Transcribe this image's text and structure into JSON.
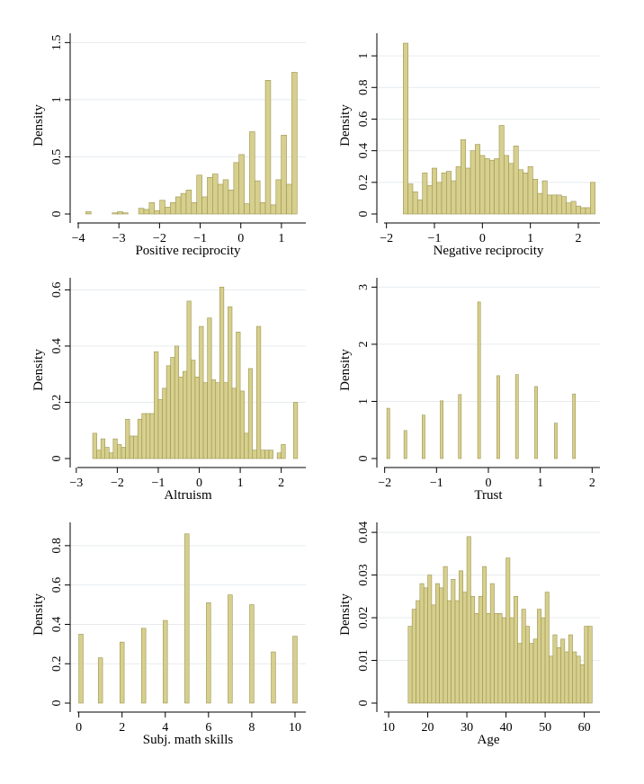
{
  "chart_data": [
    {
      "id": "positive-reciprocity",
      "type": "bar",
      "xlabel": "Positive reciprocity",
      "ylabel": "Density",
      "xlim": [
        -4.2,
        1.6
      ],
      "ylim": [
        0,
        1.55
      ],
      "xticks": [
        -4,
        -3,
        -2,
        -1,
        0,
        1
      ],
      "xtick_labels": [
        "−4",
        "−3",
        "−2",
        "−1",
        "0",
        "1"
      ],
      "yticks": [
        0,
        0.5,
        1,
        1.5
      ],
      "ytick_labels": [
        "0",
        "0.5",
        "1",
        "1.5"
      ],
      "bin_width": 0.13,
      "bins": [
        [
          -3.75,
          0.02
        ],
        [
          -3.1,
          0.01
        ],
        [
          -2.97,
          0.02
        ],
        [
          -2.84,
          0.01
        ],
        [
          -2.45,
          0.05
        ],
        [
          -2.32,
          0.04
        ],
        [
          -2.19,
          0.1
        ],
        [
          -2.06,
          0.03
        ],
        [
          -1.93,
          0.12
        ],
        [
          -1.8,
          0.06
        ],
        [
          -1.67,
          0.1
        ],
        [
          -1.54,
          0.15
        ],
        [
          -1.41,
          0.18
        ],
        [
          -1.28,
          0.21
        ],
        [
          -1.15,
          0.1
        ],
        [
          -1.02,
          0.34
        ],
        [
          -0.89,
          0.15
        ],
        [
          -0.76,
          0.32
        ],
        [
          -0.63,
          0.35
        ],
        [
          -0.5,
          0.26
        ],
        [
          -0.37,
          0.3
        ],
        [
          -0.24,
          0.21
        ],
        [
          -0.11,
          0.45
        ],
        [
          0.02,
          0.52
        ],
        [
          0.15,
          0.09
        ],
        [
          0.28,
          0.72
        ],
        [
          0.41,
          0.29
        ],
        [
          0.54,
          0.1
        ],
        [
          0.67,
          1.17
        ],
        [
          0.8,
          0.08
        ],
        [
          0.93,
          0.3
        ],
        [
          1.06,
          0.69
        ],
        [
          1.19,
          0.26
        ],
        [
          1.32,
          1.24
        ]
      ]
    },
    {
      "id": "negative-reciprocity",
      "type": "bar",
      "xlabel": "Negative reciprocity",
      "ylabel": "Density",
      "xlim": [
        -2.2,
        2.45
      ],
      "ylim": [
        0,
        1.12
      ],
      "xticks": [
        -2,
        -1,
        0,
        1,
        2
      ],
      "xtick_labels": [
        "−2",
        "−1",
        "0",
        "1",
        "2"
      ],
      "yticks": [
        0,
        0.2,
        0.4,
        0.6,
        0.8,
        1
      ],
      "ytick_labels": [
        "0",
        "0.2",
        "0.4",
        "0.6",
        "0.8",
        "1"
      ],
      "bin_width": 0.1,
      "bins": [
        [
          -1.6,
          1.08
        ],
        [
          -1.5,
          0.19
        ],
        [
          -1.4,
          0.14
        ],
        [
          -1.3,
          0.09
        ],
        [
          -1.2,
          0.26
        ],
        [
          -1.1,
          0.18
        ],
        [
          -1.0,
          0.29
        ],
        [
          -0.9,
          0.2
        ],
        [
          -0.8,
          0.26
        ],
        [
          -0.7,
          0.27
        ],
        [
          -0.6,
          0.21
        ],
        [
          -0.5,
          0.3
        ],
        [
          -0.4,
          0.47
        ],
        [
          -0.3,
          0.29
        ],
        [
          -0.2,
          0.4
        ],
        [
          -0.1,
          0.44
        ],
        [
          0.0,
          0.37
        ],
        [
          0.1,
          0.35
        ],
        [
          0.2,
          0.34
        ],
        [
          0.3,
          0.35
        ],
        [
          0.4,
          0.56
        ],
        [
          0.5,
          0.37
        ],
        [
          0.6,
          0.32
        ],
        [
          0.7,
          0.43
        ],
        [
          0.8,
          0.28
        ],
        [
          0.9,
          0.26
        ],
        [
          1.0,
          0.3
        ],
        [
          1.1,
          0.22
        ],
        [
          1.2,
          0.13
        ],
        [
          1.3,
          0.21
        ],
        [
          1.4,
          0.12
        ],
        [
          1.5,
          0.12
        ],
        [
          1.6,
          0.12
        ],
        [
          1.7,
          0.11
        ],
        [
          1.8,
          0.07
        ],
        [
          1.9,
          0.08
        ],
        [
          2.0,
          0.05
        ],
        [
          2.1,
          0.04
        ],
        [
          2.2,
          0.04
        ],
        [
          2.3,
          0.2
        ]
      ]
    },
    {
      "id": "altruism",
      "type": "bar",
      "xlabel": "Altruism",
      "ylabel": "Density",
      "xlim": [
        -3.15,
        2.6
      ],
      "ylim": [
        0,
        0.63
      ],
      "xticks": [
        -3,
        -2,
        -1,
        0,
        1,
        2
      ],
      "xtick_labels": [
        "−3",
        "−2",
        "−1",
        "0",
        "1",
        "2"
      ],
      "yticks": [
        0,
        0.2,
        0.4,
        0.6
      ],
      "ytick_labels": [
        "0",
        "0.2",
        "0.4",
        "0.6"
      ],
      "bin_width": 0.1,
      "bins": [
        [
          -2.55,
          0.09
        ],
        [
          -2.45,
          0.03
        ],
        [
          -2.35,
          0.07
        ],
        [
          -2.25,
          0.04
        ],
        [
          -2.15,
          0.02
        ],
        [
          -2.05,
          0.07
        ],
        [
          -1.95,
          0.05
        ],
        [
          -1.85,
          0.04
        ],
        [
          -1.75,
          0.14
        ],
        [
          -1.65,
          0.08
        ],
        [
          -1.55,
          0.08
        ],
        [
          -1.45,
          0.14
        ],
        [
          -1.35,
          0.16
        ],
        [
          -1.25,
          0.16
        ],
        [
          -1.15,
          0.16
        ],
        [
          -1.05,
          0.38
        ],
        [
          -0.95,
          0.21
        ],
        [
          -0.85,
          0.25
        ],
        [
          -0.75,
          0.33
        ],
        [
          -0.65,
          0.36
        ],
        [
          -0.55,
          0.4
        ],
        [
          -0.45,
          0.29
        ],
        [
          -0.35,
          0.31
        ],
        [
          -0.25,
          0.56
        ],
        [
          -0.15,
          0.35
        ],
        [
          -0.05,
          0.29
        ],
        [
          0.05,
          0.47
        ],
        [
          0.15,
          0.27
        ],
        [
          0.25,
          0.5
        ],
        [
          0.35,
          0.28
        ],
        [
          0.45,
          0.27
        ],
        [
          0.55,
          0.61
        ],
        [
          0.65,
          0.27
        ],
        [
          0.75,
          0.54
        ],
        [
          0.85,
          0.25
        ],
        [
          0.95,
          0.45
        ],
        [
          1.05,
          0.24
        ],
        [
          1.15,
          0.09
        ],
        [
          1.25,
          0.32
        ],
        [
          1.35,
          0.03
        ],
        [
          1.45,
          0.47
        ],
        [
          1.55,
          0.03
        ],
        [
          1.65,
          0.03
        ],
        [
          1.75,
          0.03
        ],
        [
          1.95,
          0.02
        ],
        [
          2.05,
          0.05
        ],
        [
          2.35,
          0.2
        ]
      ]
    },
    {
      "id": "trust",
      "type": "bar",
      "xlabel": "Trust",
      "ylabel": "Density",
      "xlim": [
        -2.15,
        2.15
      ],
      "ylim": [
        0,
        3.1
      ],
      "xticks": [
        -2,
        -1,
        0,
        1,
        2
      ],
      "xtick_labels": [
        "−2",
        "−1",
        "0",
        "1",
        "2"
      ],
      "yticks": [
        0,
        1,
        2,
        3
      ],
      "ytick_labels": [
        "0",
        "1",
        "2",
        "3"
      ],
      "bin_width": 0.055,
      "bins": [
        [
          -1.93,
          0.88
        ],
        [
          -1.6,
          0.49
        ],
        [
          -1.25,
          0.76
        ],
        [
          -0.9,
          1.01
        ],
        [
          -0.55,
          1.12
        ],
        [
          -0.18,
          2.74
        ],
        [
          0.19,
          1.45
        ],
        [
          0.55,
          1.47
        ],
        [
          0.92,
          1.26
        ],
        [
          1.3,
          0.62
        ],
        [
          1.65,
          1.13
        ]
      ]
    },
    {
      "id": "subj-math-skills",
      "type": "bar",
      "xlabel": "Subj. math skills",
      "ylabel": "Density",
      "xlim": [
        -0.4,
        10.5
      ],
      "ylim": [
        0,
        0.9
      ],
      "xticks": [
        0,
        2,
        4,
        6,
        8,
        10
      ],
      "xtick_labels": [
        "0",
        "2",
        "4",
        "6",
        "8",
        "10"
      ],
      "yticks": [
        0,
        0.2,
        0.4,
        0.6,
        0.8
      ],
      "ytick_labels": [
        "0",
        "0.2",
        "0.4",
        "0.6",
        "0.8"
      ],
      "bin_width": 0.2,
      "bins": [
        [
          0.1,
          0.35
        ],
        [
          1,
          0.23
        ],
        [
          2,
          0.31
        ],
        [
          3,
          0.38
        ],
        [
          4,
          0.42
        ],
        [
          5,
          0.86
        ],
        [
          6,
          0.51
        ],
        [
          7,
          0.55
        ],
        [
          8,
          0.5
        ],
        [
          9,
          0.26
        ],
        [
          10,
          0.34
        ]
      ]
    },
    {
      "id": "age",
      "type": "bar",
      "xlabel": "Age",
      "ylabel": "Density",
      "xlim": [
        7,
        64
      ],
      "ylim": [
        0,
        0.0415
      ],
      "xticks": [
        10,
        20,
        30,
        40,
        50,
        60
      ],
      "xtick_labels": [
        "10",
        "20",
        "30",
        "40",
        "50",
        "60"
      ],
      "yticks": [
        0,
        0.01,
        0.02,
        0.03,
        0.04
      ],
      "ytick_labels": [
        "0",
        "0.01",
        "0.02",
        "0.03",
        "0.04"
      ],
      "bin_width": 1,
      "bins": [
        [
          15.5,
          0.018
        ],
        [
          16.5,
          0.022
        ],
        [
          17.5,
          0.024
        ],
        [
          18.5,
          0.028
        ],
        [
          19.5,
          0.027
        ],
        [
          20.5,
          0.03
        ],
        [
          21.5,
          0.023
        ],
        [
          22.5,
          0.028
        ],
        [
          23.5,
          0.027
        ],
        [
          24.5,
          0.032
        ],
        [
          25.5,
          0.024
        ],
        [
          26.5,
          0.029
        ],
        [
          27.5,
          0.024
        ],
        [
          28.5,
          0.031
        ],
        [
          29.5,
          0.026
        ],
        [
          30.5,
          0.039
        ],
        [
          31.5,
          0.025
        ],
        [
          32.5,
          0.021
        ],
        [
          33.5,
          0.025
        ],
        [
          34.5,
          0.032
        ],
        [
          35.5,
          0.021
        ],
        [
          36.5,
          0.028
        ],
        [
          37.5,
          0.021
        ],
        [
          38.5,
          0.021
        ],
        [
          39.5,
          0.02
        ],
        [
          40.5,
          0.034
        ],
        [
          41.5,
          0.02
        ],
        [
          42.5,
          0.025
        ],
        [
          43.5,
          0.014
        ],
        [
          44.5,
          0.022
        ],
        [
          45.5,
          0.018
        ],
        [
          46.5,
          0.014
        ],
        [
          47.5,
          0.015
        ],
        [
          48.5,
          0.022
        ],
        [
          49.5,
          0.02
        ],
        [
          50.5,
          0.026
        ],
        [
          51.5,
          0.011
        ],
        [
          52.5,
          0.016
        ],
        [
          53.5,
          0.013
        ],
        [
          54.5,
          0.015
        ],
        [
          55.5,
          0.012
        ],
        [
          56.5,
          0.016
        ],
        [
          57.5,
          0.012
        ],
        [
          58.5,
          0.011
        ],
        [
          59.5,
          0.009
        ],
        [
          60.5,
          0.018
        ],
        [
          61.5,
          0.018
        ]
      ]
    }
  ]
}
